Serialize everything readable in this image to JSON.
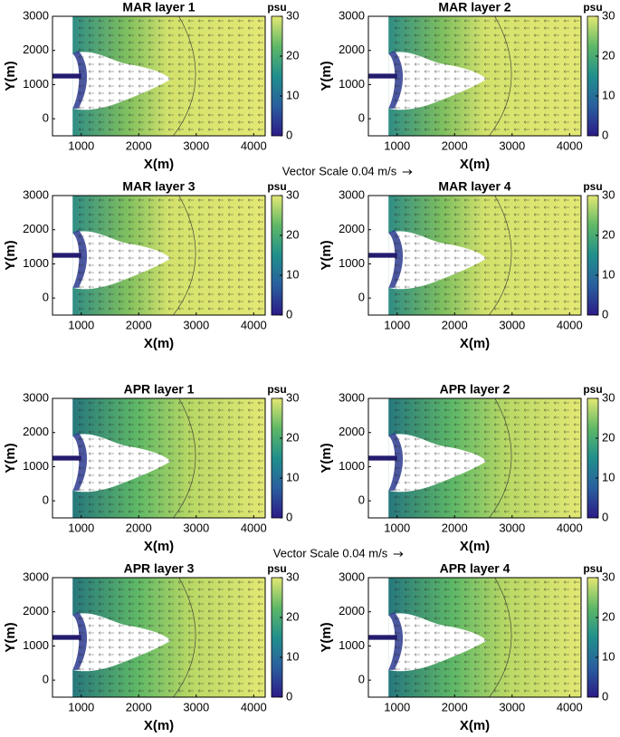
{
  "chart_data": [
    {
      "type": "contour",
      "title": "MAR layer 1",
      "x_label": "X(m)",
      "y_label": "Y(m)",
      "xlim": [
        500,
        4200
      ],
      "xticks": [
        1000,
        2000,
        3000,
        4000
      ],
      "ylim": [
        -500,
        3000
      ],
      "yticks": [
        0,
        1000,
        2000,
        3000
      ],
      "colorbar_label": "psu",
      "clim": [
        0,
        30
      ],
      "cticks": [
        0,
        10,
        20,
        30
      ]
    },
    {
      "type": "contour",
      "title": "MAR layer 2",
      "x_label": "X(m)",
      "y_label": "Y(m)",
      "xlim": [
        500,
        4200
      ],
      "xticks": [
        1000,
        2000,
        3000,
        4000
      ],
      "ylim": [
        -500,
        3000
      ],
      "yticks": [
        0,
        1000,
        2000,
        3000
      ],
      "colorbar_label": "psu",
      "clim": [
        0,
        30
      ],
      "cticks": [
        0,
        10,
        20,
        30
      ]
    },
    {
      "type": "contour",
      "title": "MAR layer 3",
      "x_label": "X(m)",
      "y_label": "Y(m)",
      "xlim": [
        500,
        4200
      ],
      "xticks": [
        1000,
        2000,
        3000,
        4000
      ],
      "ylim": [
        -500,
        3000
      ],
      "yticks": [
        0,
        1000,
        2000,
        3000
      ],
      "colorbar_label": "psu",
      "clim": [
        0,
        30
      ],
      "cticks": [
        0,
        10,
        20,
        30
      ]
    },
    {
      "type": "contour",
      "title": "MAR layer 4",
      "x_label": "X(m)",
      "y_label": "Y(m)",
      "xlim": [
        500,
        4200
      ],
      "xticks": [
        1000,
        2000,
        3000,
        4000
      ],
      "ylim": [
        -500,
        3000
      ],
      "yticks": [
        0,
        1000,
        2000,
        3000
      ],
      "colorbar_label": "psu",
      "clim": [
        0,
        30
      ],
      "cticks": [
        0,
        10,
        20,
        30
      ]
    },
    {
      "type": "contour",
      "title": "APR layer 1",
      "x_label": "X(m)",
      "y_label": "Y(m)",
      "xlim": [
        500,
        4200
      ],
      "xticks": [
        1000,
        2000,
        3000,
        4000
      ],
      "ylim": [
        -500,
        3000
      ],
      "yticks": [
        0,
        1000,
        2000,
        3000
      ],
      "colorbar_label": "psu",
      "clim": [
        0,
        30
      ],
      "cticks": [
        0,
        10,
        20,
        30
      ]
    },
    {
      "type": "contour",
      "title": "APR layer 2",
      "x_label": "X(m)",
      "y_label": "Y(m)",
      "xlim": [
        500,
        4200
      ],
      "xticks": [
        1000,
        2000,
        3000,
        4000
      ],
      "ylim": [
        -500,
        3000
      ],
      "yticks": [
        0,
        1000,
        2000,
        3000
      ],
      "colorbar_label": "psu",
      "clim": [
        0,
        30
      ],
      "cticks": [
        0,
        10,
        20,
        30
      ]
    },
    {
      "type": "contour",
      "title": "APR layer 3",
      "x_label": "X(m)",
      "y_label": "Y(m)",
      "xlim": [
        500,
        4200
      ],
      "xticks": [
        1000,
        2000,
        3000,
        4000
      ],
      "ylim": [
        -500,
        3000
      ],
      "yticks": [
        0,
        1000,
        2000,
        3000
      ],
      "colorbar_label": "psu",
      "clim": [
        0,
        30
      ],
      "cticks": [
        0,
        10,
        20,
        30
      ]
    },
    {
      "type": "contour",
      "title": "APR layer 4",
      "x_label": "X(m)",
      "y_label": "Y(m)",
      "xlim": [
        500,
        4200
      ],
      "xticks": [
        1000,
        2000,
        3000,
        4000
      ],
      "ylim": [
        -500,
        3000
      ],
      "yticks": [
        0,
        1000,
        2000,
        3000
      ],
      "colorbar_label": "psu",
      "clim": [
        0,
        30
      ],
      "cticks": [
        0,
        10,
        20,
        30
      ]
    }
  ],
  "vector_scales": [
    "Vector Scale 0.04 m/s",
    "Vector Scale 0.04 m/s"
  ]
}
